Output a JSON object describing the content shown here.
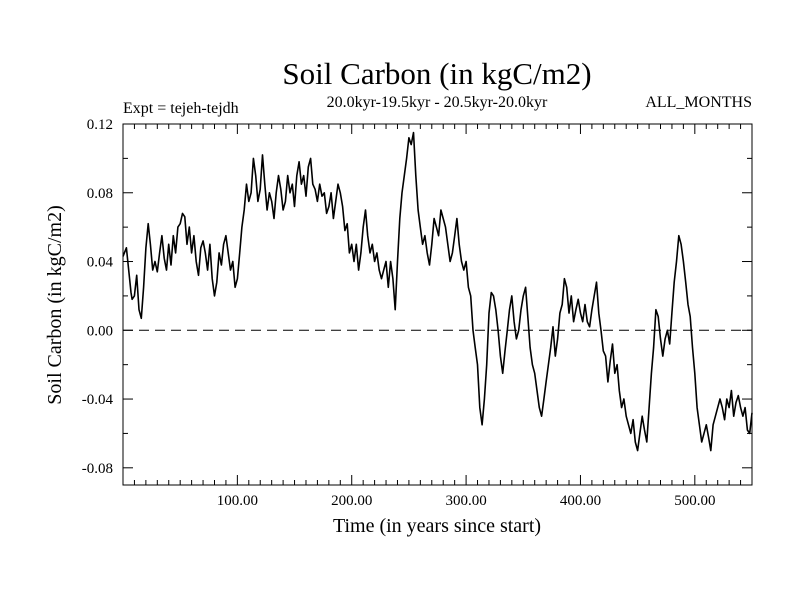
{
  "chart_data": {
    "type": "line",
    "title": "Soil Carbon (in kgC/m2)",
    "experiment": "Expt = tejeh-tejdh",
    "subtitle": "20.0kyr-19.5kyr - 20.5kyr-20.0kyr",
    "months": "ALL_MONTHS",
    "xlabel": "Time (in years since start)",
    "ylabel": "Soil Carbon (in kgC/m2)",
    "xlim": [
      0,
      550
    ],
    "ylim": [
      -0.09,
      0.12
    ],
    "xticks": [
      100,
      200,
      300,
      400,
      500
    ],
    "xtick_labels": [
      "100.00",
      "200.00",
      "300.00",
      "400.00",
      "500.00"
    ],
    "yticks": [
      -0.08,
      -0.04,
      0.0,
      0.04,
      0.08,
      0.12
    ],
    "ytick_labels": [
      "-0.08",
      "-0.04",
      "0.00",
      "0.04",
      "0.08",
      "0.12"
    ],
    "zero_line": "dashed",
    "series": [
      {
        "name": "Soil Carbon",
        "x": [
          0,
          3,
          5,
          7,
          8,
          10,
          12,
          14,
          16,
          18,
          20,
          22,
          24,
          26,
          28,
          30,
          32,
          34,
          36,
          38,
          40,
          42,
          44,
          46,
          48,
          50,
          52,
          54,
          56,
          58,
          60,
          62,
          64,
          66,
          68,
          70,
          72,
          74,
          76,
          78,
          80,
          82,
          84,
          86,
          88,
          90,
          92,
          94,
          96,
          98,
          100,
          102,
          104,
          106,
          108,
          110,
          112,
          114,
          116,
          118,
          120,
          122,
          124,
          126,
          128,
          130,
          132,
          134,
          136,
          138,
          140,
          142,
          144,
          146,
          148,
          150,
          152,
          154,
          156,
          158,
          160,
          162,
          164,
          166,
          168,
          170,
          172,
          174,
          176,
          178,
          180,
          182,
          184,
          186,
          188,
          190,
          192,
          194,
          196,
          198,
          200,
          202,
          204,
          206,
          208,
          210,
          212,
          214,
          216,
          218,
          220,
          222,
          224,
          226,
          228,
          230,
          232,
          234,
          236,
          238,
          240,
          242,
          244,
          246,
          248,
          250,
          252,
          254,
          256,
          258,
          260,
          262,
          264,
          266,
          268,
          270,
          272,
          274,
          276,
          278,
          280,
          282,
          284,
          286,
          288,
          290,
          292,
          294,
          296,
          298,
          300,
          302,
          304,
          306,
          308,
          310,
          312,
          314,
          316,
          318,
          320,
          322,
          324,
          326,
          328,
          330,
          332,
          334,
          336,
          338,
          340,
          342,
          344,
          346,
          348,
          350,
          352,
          354,
          356,
          358,
          360,
          362,
          364,
          366,
          368,
          370,
          372,
          374,
          376,
          378,
          380,
          382,
          384,
          386,
          388,
          390,
          392,
          394,
          396,
          398,
          400,
          402,
          404,
          406,
          408,
          410,
          412,
          414,
          416,
          418,
          420,
          422,
          424,
          426,
          428,
          430,
          432,
          434,
          436,
          438,
          440,
          442,
          444,
          446,
          448,
          450,
          452,
          454,
          456,
          458,
          460,
          462,
          464,
          466,
          468,
          470,
          472,
          474,
          476,
          478,
          480,
          482,
          484,
          486,
          488,
          490,
          492,
          494,
          496,
          498,
          500,
          502,
          504,
          506,
          508,
          510,
          512,
          514,
          516,
          518,
          520,
          522,
          524,
          526,
          528,
          530,
          532,
          534,
          536,
          538,
          540,
          542,
          544,
          546,
          548,
          550
        ],
        "y": [
          0.043,
          0.048,
          0.035,
          0.022,
          0.018,
          0.02,
          0.032,
          0.012,
          0.007,
          0.025,
          0.048,
          0.062,
          0.05,
          0.035,
          0.04,
          0.034,
          0.045,
          0.055,
          0.042,
          0.035,
          0.05,
          0.038,
          0.055,
          0.045,
          0.06,
          0.062,
          0.068,
          0.066,
          0.05,
          0.06,
          0.045,
          0.055,
          0.04,
          0.032,
          0.048,
          0.052,
          0.045,
          0.035,
          0.05,
          0.03,
          0.02,
          0.028,
          0.045,
          0.038,
          0.05,
          0.055,
          0.045,
          0.035,
          0.04,
          0.025,
          0.03,
          0.045,
          0.06,
          0.07,
          0.085,
          0.075,
          0.08,
          0.1,
          0.09,
          0.075,
          0.082,
          0.102,
          0.085,
          0.07,
          0.08,
          0.075,
          0.065,
          0.08,
          0.09,
          0.082,
          0.07,
          0.075,
          0.09,
          0.08,
          0.085,
          0.072,
          0.09,
          0.098,
          0.085,
          0.09,
          0.078,
          0.095,
          0.1,
          0.085,
          0.082,
          0.075,
          0.085,
          0.078,
          0.08,
          0.068,
          0.072,
          0.08,
          0.065,
          0.075,
          0.085,
          0.08,
          0.072,
          0.058,
          0.062,
          0.045,
          0.05,
          0.04,
          0.05,
          0.035,
          0.045,
          0.06,
          0.07,
          0.055,
          0.045,
          0.05,
          0.04,
          0.045,
          0.035,
          0.03,
          0.035,
          0.04,
          0.025,
          0.04,
          0.03,
          0.012,
          0.04,
          0.065,
          0.08,
          0.09,
          0.1,
          0.112,
          0.108,
          0.115,
          0.09,
          0.07,
          0.06,
          0.05,
          0.055,
          0.045,
          0.038,
          0.05,
          0.065,
          0.06,
          0.055,
          0.07,
          0.065,
          0.06,
          0.05,
          0.04,
          0.045,
          0.055,
          0.065,
          0.05,
          0.04,
          0.035,
          0.04,
          0.025,
          0.02,
          0.0,
          -0.01,
          -0.02,
          -0.045,
          -0.055,
          -0.04,
          -0.02,
          0.01,
          0.022,
          0.02,
          0.012,
          0.0,
          -0.015,
          -0.025,
          -0.012,
          0.0,
          0.012,
          0.02,
          0.005,
          -0.005,
          0.0,
          0.012,
          0.02,
          0.025,
          0.008,
          -0.01,
          -0.02,
          -0.025,
          -0.035,
          -0.045,
          -0.05,
          -0.04,
          -0.03,
          -0.02,
          -0.01,
          0.002,
          -0.015,
          -0.005,
          0.01,
          0.015,
          0.03,
          0.025,
          0.01,
          0.02,
          0.005,
          0.012,
          0.018,
          0.01,
          0.005,
          0.015,
          0.005,
          0.002,
          0.012,
          0.02,
          0.028,
          0.01,
          0.0,
          -0.012,
          -0.015,
          -0.03,
          -0.018,
          -0.008,
          -0.025,
          -0.02,
          -0.035,
          -0.045,
          -0.04,
          -0.05,
          -0.055,
          -0.06,
          -0.052,
          -0.065,
          -0.07,
          -0.06,
          -0.05,
          -0.058,
          -0.065,
          -0.045,
          -0.025,
          -0.01,
          0.012,
          0.008,
          -0.005,
          -0.015,
          -0.005,
          0.0,
          -0.008,
          0.01,
          0.028,
          0.04,
          0.055,
          0.05,
          0.04,
          0.028,
          0.015,
          0.008,
          -0.01,
          -0.025,
          -0.045,
          -0.055,
          -0.065,
          -0.06,
          -0.055,
          -0.062,
          -0.07,
          -0.055,
          -0.05,
          -0.045,
          -0.04,
          -0.045,
          -0.052,
          -0.04,
          -0.045,
          -0.035,
          -0.05,
          -0.042,
          -0.038,
          -0.045,
          -0.05,
          -0.045,
          -0.058,
          -0.06,
          -0.048
        ]
      }
    ]
  }
}
